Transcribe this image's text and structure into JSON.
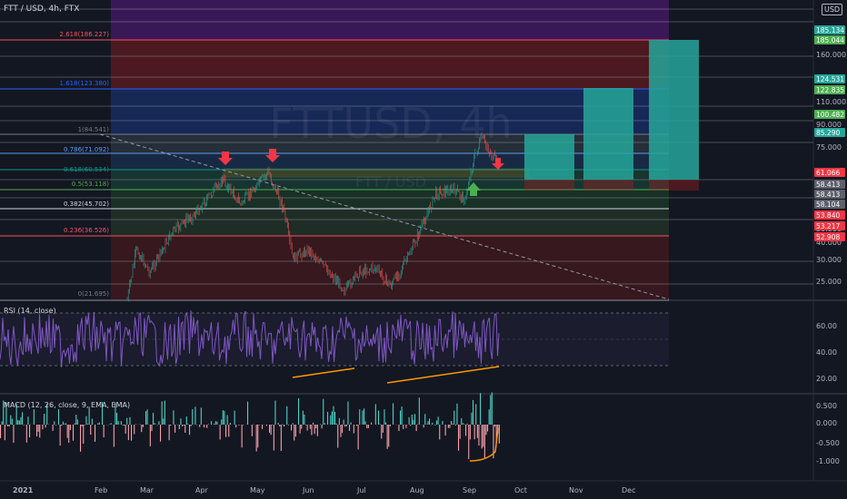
{
  "header": {
    "symbol_line": "FTT / USD, 4h, FTX",
    "currency_button": "USD",
    "corner_value": "2"
  },
  "watermark": {
    "line1": "FTTUSD, 4h",
    "line2": "FTT / USD"
  },
  "fib_levels": [
    {
      "label": "2.618(186.227)",
      "color": "#f7525f",
      "price": 186.227
    },
    {
      "label": "1.618(123.380)",
      "color": "#2962ff",
      "price": 123.38
    },
    {
      "label": "1(84.541)",
      "color": "#787b86",
      "price": 84.541
    },
    {
      "label": "0.786(71.092)",
      "color": "#5b9cf6",
      "price": 71.092
    },
    {
      "label": "0.618(60.534)",
      "color": "#089981",
      "price": 60.534
    },
    {
      "label": "0.5(53.118)",
      "color": "#4caf50",
      "price": 53.118
    },
    {
      "label": "0.382(45.702)",
      "color": "#d1d4dc",
      "price": 45.702
    },
    {
      "label": "0.236(36.526)",
      "color": "#f7525f",
      "price": 36.526
    },
    {
      "label": "0(21.695)",
      "color": "#787b86",
      "price": 21.695
    }
  ],
  "price_axis_ticks": [
    "160.000",
    "110.000",
    "90.000",
    "75.000",
    "50.000",
    "40.000",
    "30.000",
    "25.000"
  ],
  "price_badges": [
    {
      "text": "185.134",
      "bg": "#26a69a"
    },
    {
      "text": "185.044",
      "bg": "#4caf50"
    },
    {
      "text": "124.531",
      "bg": "#26a69a"
    },
    {
      "text": "122.835",
      "bg": "#4caf50"
    },
    {
      "text": "100.482",
      "bg": "#4caf50"
    },
    {
      "text": "85.290",
      "bg": "#26a69a"
    },
    {
      "text": "61.066",
      "bg": "#f23645"
    },
    {
      "text": "58.413",
      "bg": "#5d606b"
    },
    {
      "text": "58.413",
      "bg": "#5d606b"
    },
    {
      "text": "58.104",
      "bg": "#5d606b"
    },
    {
      "text": "53.840",
      "bg": "#f23645"
    },
    {
      "text": "53.217",
      "bg": "#f23645"
    },
    {
      "text": "52.908",
      "bg": "#f23645"
    }
  ],
  "rsi": {
    "title": "RSI (14, close)",
    "ticks": [
      "60.00",
      "40.00",
      "20.00"
    ]
  },
  "macd": {
    "title": "MACD (12, 26, close, 9, EMA, EMA)",
    "ticks": [
      "0.500",
      "0.000",
      "-0.500",
      "-1.000"
    ]
  },
  "time_axis": [
    "2021",
    "Feb",
    "Mar",
    "Apr",
    "May",
    "Jun",
    "Jul",
    "Aug",
    "Sep",
    "Oct",
    "Nov",
    "Dec"
  ],
  "colors": {
    "background": "#131722",
    "candle_up": "#26a69a",
    "candle_down": "#ef5350",
    "rsi_line": "#7e57c2",
    "trendline": "#ff9800",
    "target_box": "#26a69a"
  }
}
